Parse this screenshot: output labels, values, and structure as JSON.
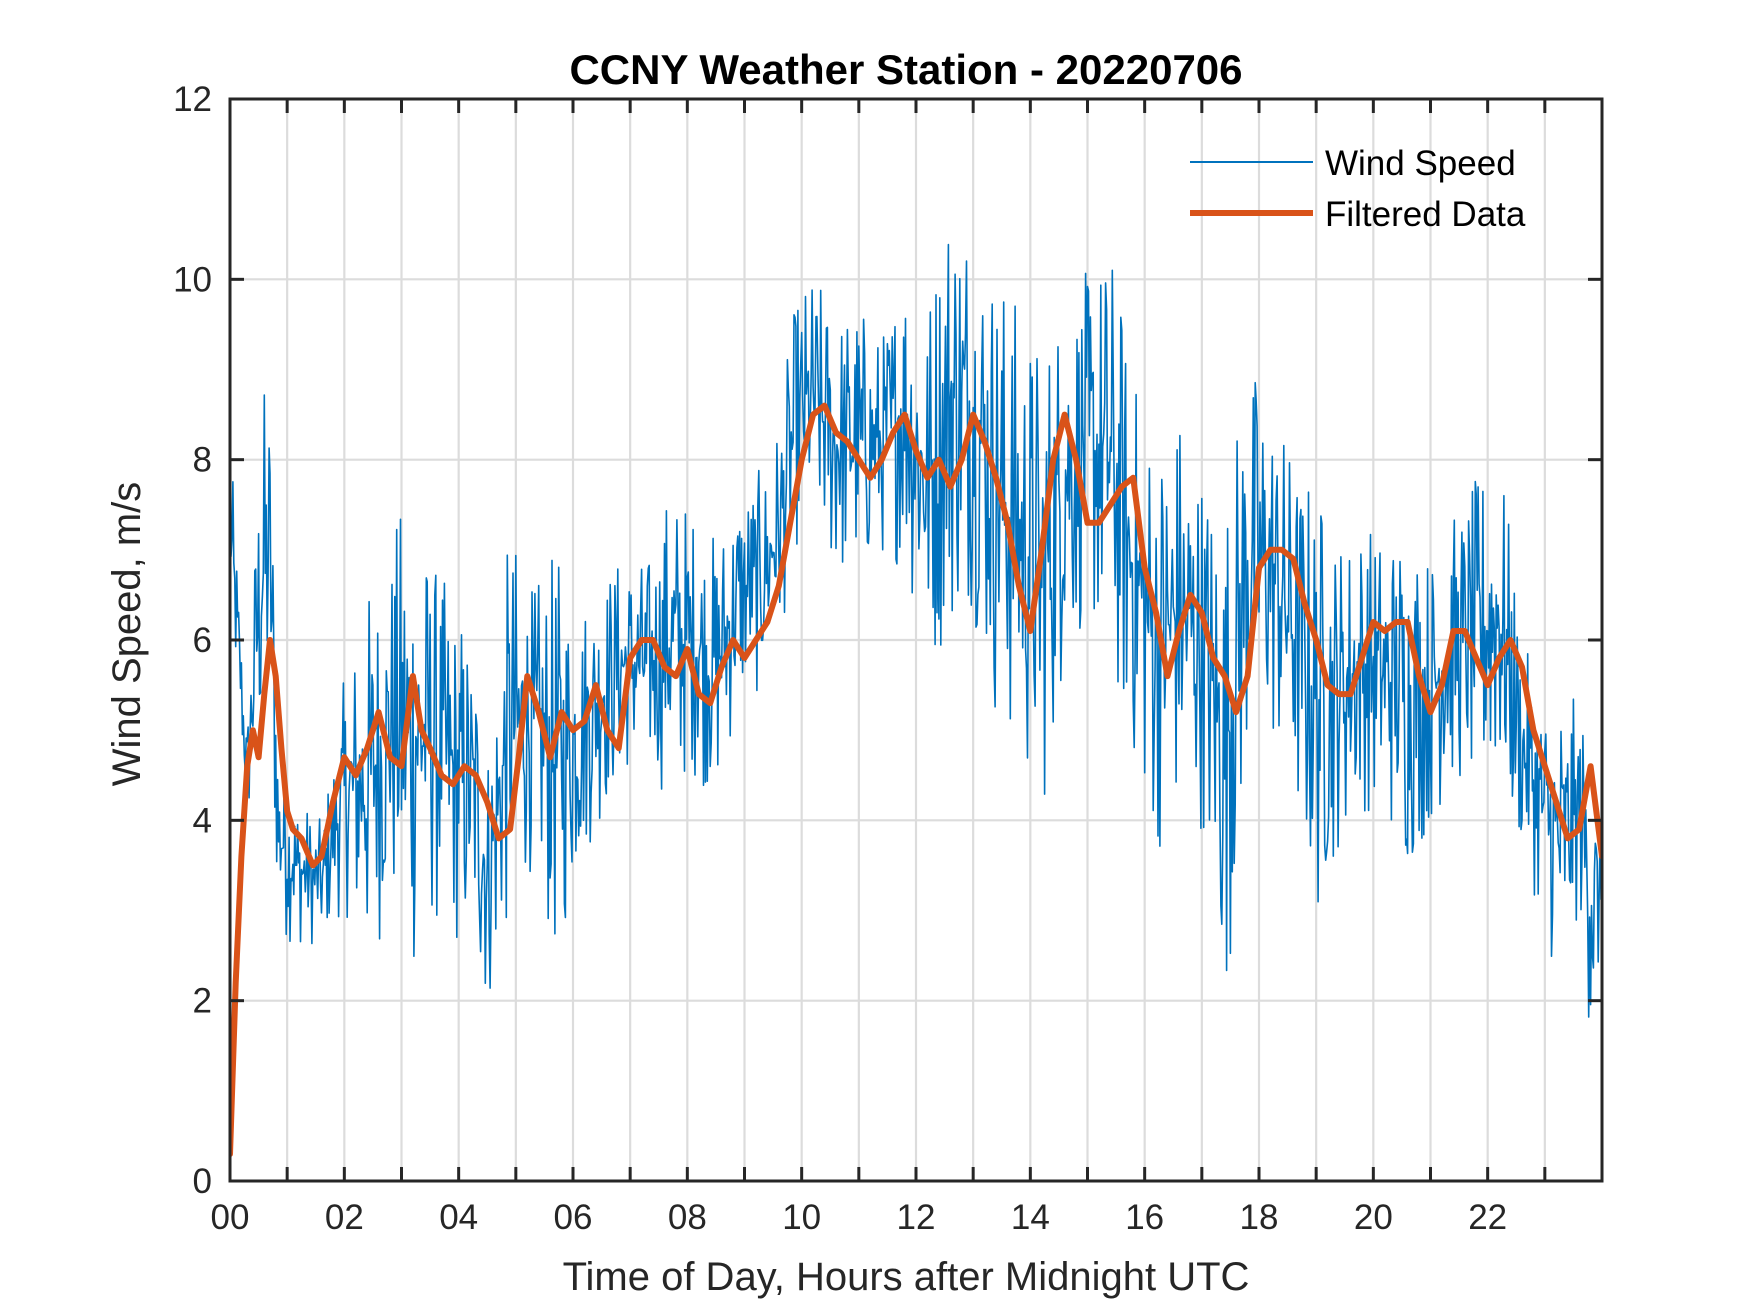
{
  "chart_data": {
    "type": "line",
    "title": "CCNY Weather Station - 20220706",
    "xlabel": "Time of Day, Hours after Midnight UTC",
    "ylabel": "Wind Speed, m/s",
    "xlim": [
      0,
      24
    ],
    "ylim": [
      0,
      12
    ],
    "xticks": [
      0,
      1,
      2,
      3,
      4,
      5,
      6,
      7,
      8,
      9,
      10,
      11,
      12,
      13,
      14,
      15,
      16,
      17,
      18,
      19,
      20,
      21,
      22,
      23
    ],
    "xtick_labels": [
      "00",
      "02",
      "04",
      "06",
      "08",
      "10",
      "12",
      "14",
      "16",
      "18",
      "20",
      "22"
    ],
    "xtick_label_values": [
      0,
      2,
      4,
      6,
      8,
      10,
      12,
      14,
      16,
      18,
      20,
      22
    ],
    "yticks": [
      0,
      2,
      4,
      6,
      8,
      10,
      12
    ],
    "ytick_labels": [
      "0",
      "2",
      "4",
      "6",
      "8",
      "10",
      "12"
    ],
    "grid": true,
    "legend": {
      "position": "top-right",
      "entries": [
        "Wind Speed",
        "Filtered Data"
      ]
    },
    "series": [
      {
        "name": "Wind Speed",
        "color": "#0072bd",
        "note": "high-frequency raw series; envelope sampled as [hour, low, high]",
        "envelope": [
          [
            0.0,
            6.3,
            8.3
          ],
          [
            0.3,
            3.9,
            5.1
          ],
          [
            0.55,
            4.5,
            8.9
          ],
          [
            0.7,
            4.8,
            8.9
          ],
          [
            0.85,
            2.7,
            5.0
          ],
          [
            1.2,
            2.6,
            4.3
          ],
          [
            1.6,
            2.6,
            4.0
          ],
          [
            2.0,
            3.0,
            5.6
          ],
          [
            2.4,
            2.2,
            6.6
          ],
          [
            2.8,
            3.0,
            7.0
          ],
          [
            3.1,
            2.0,
            7.9
          ],
          [
            3.5,
            2.8,
            7.0
          ],
          [
            3.9,
            2.6,
            6.5
          ],
          [
            4.3,
            2.3,
            6.1
          ],
          [
            4.5,
            1.8,
            4.9
          ],
          [
            4.9,
            2.8,
            7.3
          ],
          [
            5.3,
            3.5,
            6.6
          ],
          [
            5.7,
            2.3,
            7.0
          ],
          [
            6.1,
            3.4,
            6.5
          ],
          [
            6.5,
            4.0,
            6.8
          ],
          [
            6.9,
            4.5,
            7.0
          ],
          [
            7.3,
            4.5,
            6.9
          ],
          [
            7.7,
            4.2,
            7.8
          ],
          [
            8.1,
            4.5,
            7.5
          ],
          [
            8.5,
            4.2,
            7.2
          ],
          [
            8.9,
            5.2,
            7.8
          ],
          [
            9.3,
            5.4,
            7.9
          ],
          [
            9.6,
            5.9,
            8.5
          ],
          [
            9.9,
            7.0,
            9.8
          ],
          [
            10.2,
            7.2,
            10.1
          ],
          [
            10.6,
            6.6,
            9.7
          ],
          [
            11.0,
            6.6,
            9.8
          ],
          [
            11.4,
            6.9,
            9.4
          ],
          [
            11.8,
            6.8,
            10.4
          ],
          [
            12.2,
            5.5,
            9.9
          ],
          [
            12.6,
            6.1,
            11.3
          ],
          [
            13.0,
            6.3,
            10.9
          ],
          [
            13.4,
            5.0,
            10.3
          ],
          [
            13.8,
            4.6,
            9.8
          ],
          [
            14.2,
            3.9,
            9.4
          ],
          [
            14.6,
            5.7,
            10.0
          ],
          [
            15.0,
            6.2,
            10.1
          ],
          [
            15.4,
            5.5,
            10.5
          ],
          [
            15.8,
            4.6,
            9.0
          ],
          [
            16.2,
            3.6,
            8.3
          ],
          [
            16.6,
            3.9,
            8.7
          ],
          [
            17.0,
            3.9,
            8.0
          ],
          [
            17.4,
            1.8,
            7.7
          ],
          [
            17.8,
            4.6,
            9.2
          ],
          [
            18.2,
            4.8,
            8.8
          ],
          [
            18.6,
            4.1,
            8.1
          ],
          [
            19.0,
            2.8,
            7.8
          ],
          [
            19.4,
            3.7,
            7.2
          ],
          [
            19.8,
            4.1,
            7.4
          ],
          [
            20.2,
            4.0,
            7.2
          ],
          [
            20.6,
            3.4,
            7.5
          ],
          [
            21.0,
            3.9,
            7.0
          ],
          [
            21.4,
            4.4,
            7.4
          ],
          [
            21.8,
            4.2,
            7.8
          ],
          [
            22.2,
            4.3,
            8.3
          ],
          [
            22.6,
            3.6,
            6.0
          ],
          [
            23.0,
            2.8,
            5.4
          ],
          [
            23.3,
            1.8,
            5.5
          ],
          [
            23.6,
            3.0,
            5.3
          ],
          [
            23.85,
            1.1,
            4.8
          ],
          [
            24.0,
            2.9,
            3.6
          ]
        ]
      },
      {
        "name": "Filtered Data",
        "color": "#d95319",
        "x": [
          0.0,
          0.1,
          0.2,
          0.3,
          0.4,
          0.5,
          0.6,
          0.7,
          0.8,
          0.9,
          1.0,
          1.1,
          1.25,
          1.45,
          1.6,
          1.8,
          2.0,
          2.2,
          2.4,
          2.6,
          2.8,
          3.0,
          3.2,
          3.35,
          3.5,
          3.7,
          3.9,
          4.1,
          4.3,
          4.5,
          4.7,
          4.9,
          5.05,
          5.2,
          5.4,
          5.6,
          5.8,
          6.0,
          6.2,
          6.4,
          6.6,
          6.8,
          7.0,
          7.2,
          7.4,
          7.6,
          7.8,
          8.0,
          8.2,
          8.4,
          8.6,
          8.8,
          9.0,
          9.2,
          9.4,
          9.6,
          9.8,
          10.0,
          10.2,
          10.4,
          10.6,
          10.8,
          11.0,
          11.2,
          11.4,
          11.6,
          11.8,
          12.0,
          12.2,
          12.4,
          12.6,
          12.8,
          13.0,
          13.2,
          13.4,
          13.6,
          13.8,
          14.0,
          14.2,
          14.4,
          14.6,
          14.8,
          15.0,
          15.2,
          15.4,
          15.6,
          15.8,
          16.0,
          16.2,
          16.4,
          16.6,
          16.8,
          17.0,
          17.2,
          17.4,
          17.6,
          17.8,
          18.0,
          18.2,
          18.4,
          18.6,
          18.8,
          19.0,
          19.2,
          19.4,
          19.6,
          19.8,
          20.0,
          20.2,
          20.4,
          20.6,
          20.8,
          21.0,
          21.2,
          21.4,
          21.6,
          21.8,
          22.0,
          22.2,
          22.4,
          22.6,
          22.8,
          23.0,
          23.2,
          23.4,
          23.6,
          23.8,
          24.0
        ],
        "y": [
          0.3,
          2.2,
          3.6,
          4.6,
          5.0,
          4.7,
          5.4,
          6.0,
          5.6,
          4.8,
          4.1,
          3.9,
          3.8,
          3.5,
          3.6,
          4.2,
          4.7,
          4.5,
          4.8,
          5.2,
          4.7,
          4.6,
          5.6,
          5.0,
          4.8,
          4.5,
          4.4,
          4.6,
          4.5,
          4.2,
          3.8,
          3.9,
          4.7,
          5.6,
          5.2,
          4.7,
          5.2,
          5.0,
          5.1,
          5.5,
          5.0,
          4.8,
          5.8,
          6.0,
          6.0,
          5.7,
          5.6,
          5.9,
          5.4,
          5.3,
          5.7,
          6.0,
          5.8,
          6.0,
          6.2,
          6.6,
          7.3,
          8.0,
          8.5,
          8.6,
          8.3,
          8.2,
          8.0,
          7.8,
          8.0,
          8.3,
          8.5,
          8.1,
          7.8,
          8.0,
          7.7,
          8.0,
          8.5,
          8.2,
          7.8,
          7.3,
          6.6,
          6.1,
          7.0,
          8.0,
          8.5,
          8.0,
          7.3,
          7.3,
          7.5,
          7.7,
          7.8,
          6.8,
          6.3,
          5.6,
          6.1,
          6.5,
          6.3,
          5.8,
          5.6,
          5.2,
          5.6,
          6.8,
          7.0,
          7.0,
          6.9,
          6.4,
          6.0,
          5.5,
          5.4,
          5.4,
          5.8,
          6.2,
          6.1,
          6.2,
          6.2,
          5.6,
          5.2,
          5.5,
          6.1,
          6.1,
          5.8,
          5.5,
          5.8,
          6.0,
          5.7,
          5.0,
          4.6,
          4.2,
          3.8,
          3.9,
          4.6,
          3.6
        ]
      }
    ]
  }
}
